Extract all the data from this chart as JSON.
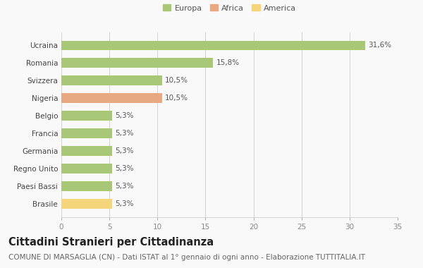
{
  "categories": [
    "Brasile",
    "Paesi Bassi",
    "Regno Unito",
    "Germania",
    "Francia",
    "Belgio",
    "Nigeria",
    "Svizzera",
    "Romania",
    "Ucraina"
  ],
  "values": [
    5.3,
    5.3,
    5.3,
    5.3,
    5.3,
    5.3,
    10.5,
    10.5,
    15.8,
    31.6
  ],
  "labels": [
    "5,3%",
    "5,3%",
    "5,3%",
    "5,3%",
    "5,3%",
    "5,3%",
    "10,5%",
    "10,5%",
    "15,8%",
    "31,6%"
  ],
  "colors": [
    "#f5d57a",
    "#a8c878",
    "#a8c878",
    "#a8c878",
    "#a8c878",
    "#a8c878",
    "#e8a882",
    "#a8c878",
    "#a8c878",
    "#a8c878"
  ],
  "legend_items": [
    {
      "label": "Europa",
      "color": "#a8c878"
    },
    {
      "label": "Africa",
      "color": "#e8a882"
    },
    {
      "label": "America",
      "color": "#f5d57a"
    }
  ],
  "xlim": [
    0,
    35
  ],
  "xticks": [
    0,
    5,
    10,
    15,
    20,
    25,
    30,
    35
  ],
  "title": "Cittadini Stranieri per Cittadinanza",
  "subtitle": "COMUNE DI MARSAGLIA (CN) - Dati ISTAT al 1° gennaio di ogni anno - Elaborazione TUTTITALIA.IT",
  "bg_color": "#f9f9f9",
  "bar_height": 0.55,
  "label_fontsize": 7.5,
  "title_fontsize": 10.5,
  "subtitle_fontsize": 7.5,
  "ytick_fontsize": 7.5,
  "xtick_fontsize": 7.5,
  "legend_fontsize": 8
}
